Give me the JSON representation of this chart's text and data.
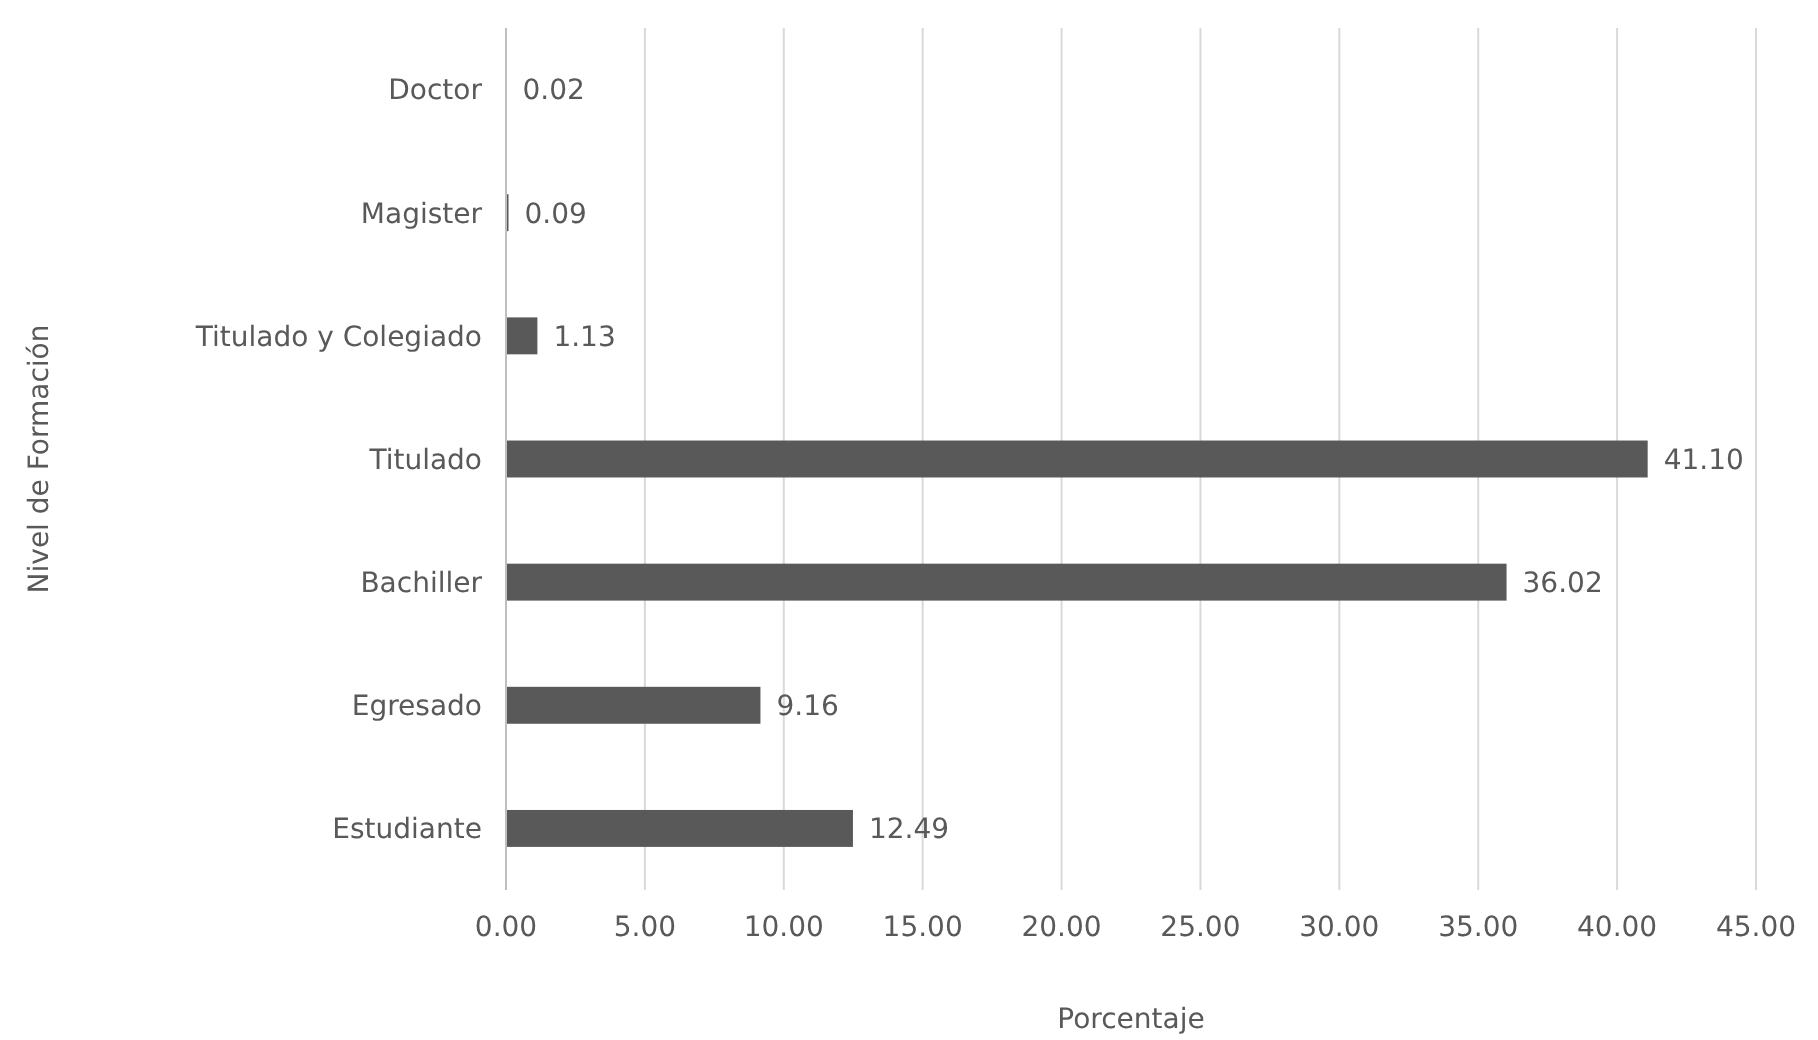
{
  "chart_data": {
    "type": "bar",
    "orientation": "horizontal",
    "xlabel": "Porcentaje",
    "ylabel": "Nivel de Formación",
    "categories": [
      "Doctor",
      "Magister",
      "Titulado y Colegiado",
      "Titulado",
      "Bachiller",
      "Egresado",
      "Estudiante"
    ],
    "values": [
      0.02,
      0.09,
      1.13,
      41.1,
      36.02,
      9.16,
      12.49
    ],
    "value_labels": [
      "0.02",
      "0.09",
      "1.13",
      "41.10",
      "36.02",
      "9.16",
      "12.49"
    ],
    "color": "#595959",
    "xlim": [
      0,
      45
    ],
    "xticks": [
      {
        "value": 0,
        "label": "0.00"
      },
      {
        "value": 5,
        "label": "5.00"
      },
      {
        "value": 10,
        "label": "10.00"
      },
      {
        "value": 15,
        "label": "15.00"
      },
      {
        "value": 20,
        "label": "20.00"
      },
      {
        "value": 25,
        "label": "25.00"
      },
      {
        "value": 30,
        "label": "30.00"
      },
      {
        "value": 35,
        "label": "35.00"
      },
      {
        "value": 40,
        "label": "40.00"
      },
      {
        "value": 45,
        "label": "45.00"
      }
    ],
    "grid": "x"
  }
}
